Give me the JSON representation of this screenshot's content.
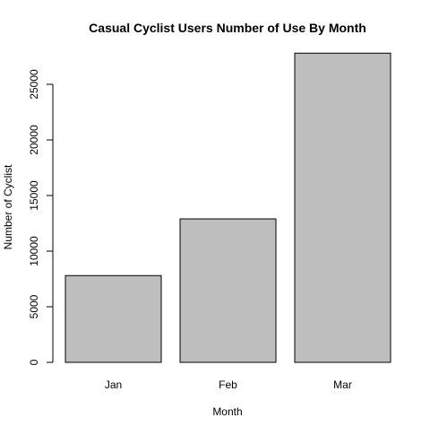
{
  "chart_data": {
    "type": "bar",
    "title": "Casual Cyclist Users Number of Use By Month",
    "xlabel": "Month",
    "ylabel": "Number of Cyclist",
    "categories": [
      "Jan",
      "Feb",
      "Mar"
    ],
    "values": [
      7800,
      12900,
      27800
    ],
    "ylim": [
      0,
      28000
    ],
    "yticks": [
      0,
      5000,
      10000,
      15000,
      20000,
      25000
    ],
    "grid": false,
    "legend": "none",
    "colors": {
      "bar_fill": "#bebebe",
      "bar_stroke": "#000000",
      "axis": "#000000",
      "background": "#ffffff"
    }
  }
}
